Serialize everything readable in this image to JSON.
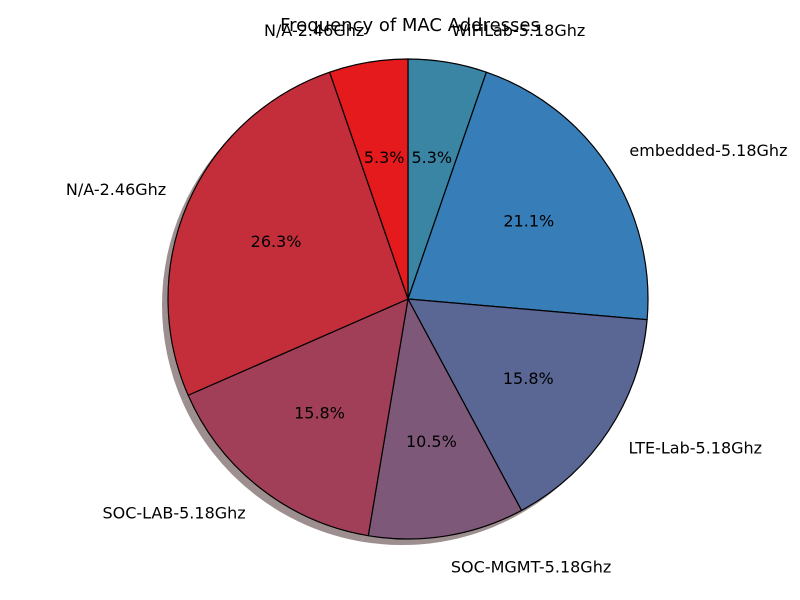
{
  "chart_data": {
    "type": "pie",
    "title": "Frequency of MAC Addresses",
    "shadow": true,
    "start_angle_deg": 90,
    "direction": "clockwise",
    "slices": [
      {
        "label": "WiFiLab-5.18Ghz",
        "value": 5.3,
        "pct_label": "5.3%",
        "color": "#3a84a4"
      },
      {
        "label": "embedded-5.18Ghz",
        "value": 21.1,
        "pct_label": "21.1%",
        "color": "#377eb8"
      },
      {
        "label": "LTE-Lab-5.18Ghz",
        "value": 15.8,
        "pct_label": "15.8%",
        "color": "#5a6693"
      },
      {
        "label": "SOC-MGMT-5.18Ghz",
        "value": 10.5,
        "pct_label": "10.5%",
        "color": "#7e5878"
      },
      {
        "label": "SOC-LAB-5.18Ghz",
        "value": 15.8,
        "pct_label": "15.8%",
        "color": "#a23f58"
      },
      {
        "label": "N/A-2.46Ghz",
        "value": 26.3,
        "pct_label": "26.3%",
        "color": "#c42e3b"
      },
      {
        "label": "N/A-2.46Ghz",
        "value": 5.3,
        "pct_label": "5.3%",
        "color": "#e41a1c"
      }
    ]
  }
}
